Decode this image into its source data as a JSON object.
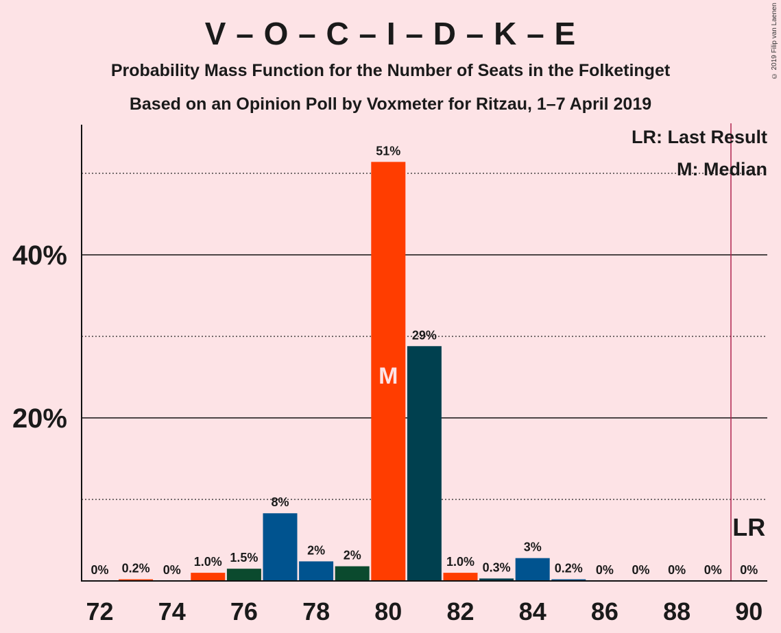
{
  "header": {
    "title": "V – O – C – I – D – K – E",
    "subtitle1": "Probability Mass Function for the Number of Seats in the Folketinget",
    "subtitle2": "Based on an Opinion Poll by Voxmeter for Ritzau, 1–7 April 2019",
    "copyright": "© 2019 Filip van Laenen"
  },
  "legend": {
    "last_result": "LR: Last Result",
    "median": "M: Median"
  },
  "markers": {
    "median_label": "M",
    "last_result_label": "LR"
  },
  "colors": {
    "background": "#FDE3E6",
    "orange": "#FF3D00",
    "teal": "#00404F",
    "blue": "#00538F",
    "green": "#0B4A2E",
    "last_result_line": "#B0244F"
  },
  "chart_data": {
    "type": "bar",
    "xlabel": "",
    "ylabel": "",
    "ylim": [
      0,
      56
    ],
    "yticks": [
      20,
      40
    ],
    "ytick_labels": [
      "20%",
      "40%"
    ],
    "dotted_gridlines": [
      10,
      30,
      50
    ],
    "xtick_values": [
      72,
      74,
      76,
      78,
      80,
      82,
      84,
      86,
      88,
      90
    ],
    "median": 80,
    "last_result": 90,
    "bars": [
      {
        "x": 72,
        "value": 0,
        "label": "0%",
        "color": "orange"
      },
      {
        "x": 73,
        "value": 0.2,
        "label": "0.2%",
        "color": "orange"
      },
      {
        "x": 74,
        "value": 0,
        "label": "0%",
        "color": "orange"
      },
      {
        "x": 75,
        "value": 1.0,
        "label": "1.0%",
        "color": "orange"
      },
      {
        "x": 76,
        "value": 1.5,
        "label": "1.5%",
        "color": "green"
      },
      {
        "x": 77,
        "value": 8.3,
        "label": "8%",
        "color": "blue"
      },
      {
        "x": 78,
        "value": 2.4,
        "label": "2%",
        "color": "blue"
      },
      {
        "x": 79,
        "value": 1.8,
        "label": "2%",
        "color": "green"
      },
      {
        "x": 80,
        "value": 51.4,
        "label": "51%",
        "color": "orange"
      },
      {
        "x": 81,
        "value": 28.8,
        "label": "29%",
        "color": "teal"
      },
      {
        "x": 82,
        "value": 1.0,
        "label": "1.0%",
        "color": "orange"
      },
      {
        "x": 83,
        "value": 0.3,
        "label": "0.3%",
        "color": "teal"
      },
      {
        "x": 84,
        "value": 2.8,
        "label": "3%",
        "color": "blue"
      },
      {
        "x": 85,
        "value": 0.2,
        "label": "0.2%",
        "color": "blue"
      },
      {
        "x": 86,
        "value": 0,
        "label": "0%",
        "color": "blue"
      },
      {
        "x": 87,
        "value": 0,
        "label": "0%",
        "color": "blue"
      },
      {
        "x": 88,
        "value": 0,
        "label": "0%",
        "color": "blue"
      },
      {
        "x": 89,
        "value": 0,
        "label": "0%",
        "color": "blue"
      },
      {
        "x": 90,
        "value": 0,
        "label": "0%",
        "color": "blue"
      }
    ]
  }
}
